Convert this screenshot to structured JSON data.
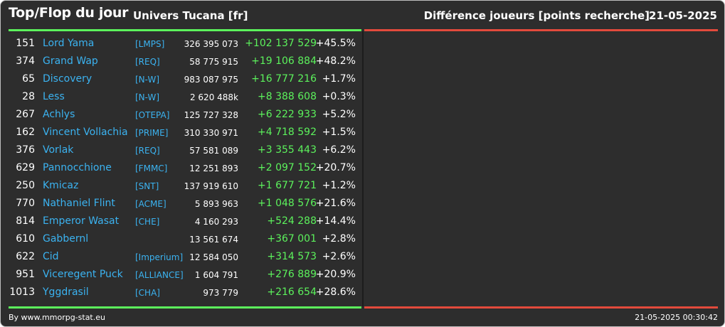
{
  "header": {
    "title": "Top/Flop du jour",
    "subtitle": "Univers Tucana [fr]",
    "right_title": "Différence joueurs [points recherche]",
    "date": "21-05-2025"
  },
  "colors": {
    "background": "#2d2d2d",
    "gain": "#5cf25c",
    "loss": "#e24a3c",
    "link": "#3bb3f1"
  },
  "top_rows": [
    {
      "rank": "151",
      "name": "Lord Yama",
      "alliance": "[LMPS]",
      "points": "326 395 073",
      "diff": "+102 137 529",
      "pct": "+45.5%"
    },
    {
      "rank": "374",
      "name": "Grand Wap",
      "alliance": "[REQ]",
      "points": "58 775 915",
      "diff": "+19 106 884",
      "pct": "+48.2%"
    },
    {
      "rank": "65",
      "name": "Discovery",
      "alliance": "[N-W]",
      "points": "983 087 975",
      "diff": "+16 777 216",
      "pct": "+1.7%"
    },
    {
      "rank": "28",
      "name": "Less",
      "alliance": "[N-W]",
      "points": "2 620 488k",
      "diff": "+8 388 608",
      "pct": "+0.3%"
    },
    {
      "rank": "267",
      "name": "Achlys",
      "alliance": "[OTEPA]",
      "points": "125 727 328",
      "diff": "+6 222 933",
      "pct": "+5.2%"
    },
    {
      "rank": "162",
      "name": "Vincent Vollachia",
      "alliance": "[PRIME]",
      "points": "310 330 971",
      "diff": "+4 718 592",
      "pct": "+1.5%"
    },
    {
      "rank": "376",
      "name": "Vorlak",
      "alliance": "[REQ]",
      "points": "57 581 089",
      "diff": "+3 355 443",
      "pct": "+6.2%"
    },
    {
      "rank": "629",
      "name": "Pannocchione",
      "alliance": "[FMMC]",
      "points": "12 251 893",
      "diff": "+2 097 152",
      "pct": "+20.7%"
    },
    {
      "rank": "250",
      "name": "Kmicaz",
      "alliance": "[SNT]",
      "points": "137 919 610",
      "diff": "+1 677 721",
      "pct": "+1.2%"
    },
    {
      "rank": "770",
      "name": "Nathaniel Flint",
      "alliance": "[ACME]",
      "points": "5 893 963",
      "diff": "+1 048 576",
      "pct": "+21.6%"
    },
    {
      "rank": "814",
      "name": "Emperor Wasat",
      "alliance": "[CHE]",
      "points": "4 160 293",
      "diff": "+524 288",
      "pct": "+14.4%"
    },
    {
      "rank": "610",
      "name": "Gabbernl",
      "alliance": "",
      "points": "13 561 674",
      "diff": "+367 001",
      "pct": "+2.8%"
    },
    {
      "rank": "622",
      "name": "Cid",
      "alliance": "[Imperium]",
      "points": "12 584 050",
      "diff": "+314 573",
      "pct": "+2.6%"
    },
    {
      "rank": "951",
      "name": "Viceregent Puck",
      "alliance": "[ALLIANCE]",
      "points": "1 604 791",
      "diff": "+276 889",
      "pct": "+20.9%"
    },
    {
      "rank": "1013",
      "name": "Yggdrasil",
      "alliance": "[CHA]",
      "points": "973 779",
      "diff": "+216 654",
      "pct": "+28.6%"
    }
  ],
  "footer": {
    "credit": "By www.mmorpg-stat.eu",
    "timestamp": "21-05-2025 00:30:42"
  }
}
